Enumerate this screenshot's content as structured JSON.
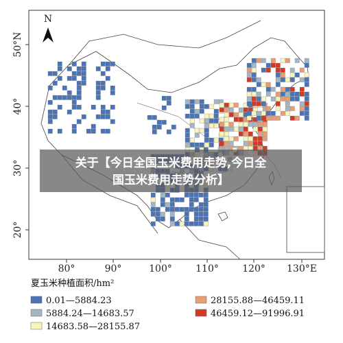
{
  "map": {
    "north_label": "N",
    "lon_labels": [
      "80°",
      "90°",
      "100°",
      "110°",
      "120°",
      "130°E"
    ],
    "lat_labels": [
      "20°",
      "30°",
      "40°",
      "50°N"
    ],
    "legend": {
      "title": "夏玉米种植面积/hm²",
      "items": [
        {
          "label": "0.01—5884.23",
          "color": "#4a74b5"
        },
        {
          "label": "5884.24—14683.57",
          "color": "#a3b6c4"
        },
        {
          "label": "14683.58—28155.87",
          "color": "#f8f4bd"
        },
        {
          "label": "28155.88—46459.11",
          "color": "#ea9c74"
        },
        {
          "label": "46459.12—91996.91",
          "color": "#d33a24"
        }
      ]
    }
  },
  "overlay": {
    "lines": [
      "关于【今日全国玉米费用走势,今日全",
      "国玉米费用走势分析】"
    ]
  }
}
